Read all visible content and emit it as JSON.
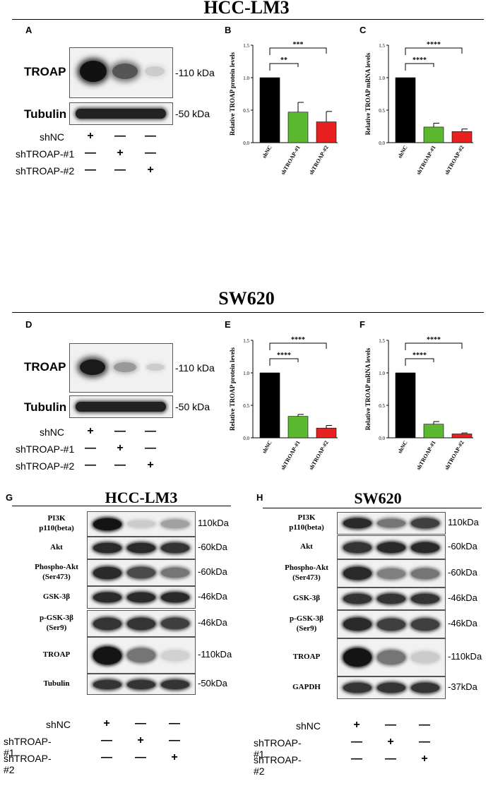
{
  "titles": {
    "top": "HCC-LM3",
    "mid": "SW620",
    "g": "HCC-LM3",
    "h": "SW620"
  },
  "panel_labels": {
    "a": "A",
    "b": "B",
    "c": "C",
    "d": "D",
    "e": "E",
    "f": "F",
    "g": "G",
    "h": "H"
  },
  "westerns_top": {
    "troap": "TROAP",
    "tubulin": "Tubulin",
    "kda_110": "-110 kDa",
    "kda_50": "-50 kDa"
  },
  "treatments": {
    "shnc": "shNC",
    "sh1": "shTROAP-#1",
    "sh2": "shTROAP-#2"
  },
  "signs": {
    "plus": "+",
    "minus": "—"
  },
  "westerns_g": {
    "rows": [
      {
        "label": "PI3K\np110(beta)",
        "kda": "110kDa"
      },
      {
        "label": "Akt",
        "kda": "-60kDa"
      },
      {
        "label": "Phospho-Akt\n(Ser473)",
        "kda": "-60kDa"
      },
      {
        "label": "GSK-3β",
        "kda": "-46kDa"
      },
      {
        "label": "p-GSK-3β\n(Ser9)",
        "kda": "-46kDa"
      },
      {
        "label": "TROAP",
        "kda": "-110kDa"
      },
      {
        "label": "Tubulin",
        "kda": "-50kDa"
      }
    ]
  },
  "westerns_h": {
    "rows": [
      {
        "label": "PI3K\np110(beta)",
        "kda": "110kDa"
      },
      {
        "label": "Akt",
        "kda": "-60kDa"
      },
      {
        "label": "Phospho-Akt\n(Ser473)",
        "kda": "-60kDa"
      },
      {
        "label": "GSK-3β",
        "kda": "-46kDa"
      },
      {
        "label": "p-GSK-3β\n(Ser9)",
        "kda": "-46kDa"
      },
      {
        "label": "TROAP",
        "kda": "-110kDa"
      },
      {
        "label": "GAPDH",
        "kda": "-37kDa"
      }
    ]
  },
  "chart_data": [
    {
      "id": "B",
      "type": "bar",
      "categories": [
        "shNC",
        "shTROAP-#1",
        "shTROAP-#2"
      ],
      "values": [
        1.0,
        0.47,
        0.32
      ],
      "errors": [
        0,
        0.15,
        0.16
      ],
      "colors": [
        "#000000",
        "#5cb82e",
        "#e8201f"
      ],
      "ylabel": "Relative TROAP protein levels",
      "ylim": [
        0,
        1.5
      ],
      "yticks": [
        "0.0",
        "0.5",
        "1.0",
        "1.5"
      ],
      "annotations": [
        "**",
        "***"
      ]
    },
    {
      "id": "C",
      "type": "bar",
      "categories": [
        "shNC",
        "shTROAP-#1",
        "shTROAP-#2"
      ],
      "values": [
        1.0,
        0.24,
        0.17
      ],
      "errors": [
        0,
        0.06,
        0.04
      ],
      "colors": [
        "#000000",
        "#5cb82e",
        "#e8201f"
      ],
      "ylabel": "Relative TROAP mRNA levels",
      "ylim": [
        0,
        1.5
      ],
      "yticks": [
        "0.0",
        "0.5",
        "1.0",
        "1.5"
      ],
      "annotations": [
        "****",
        "****"
      ]
    },
    {
      "id": "E",
      "type": "bar",
      "categories": [
        "shNC",
        "shTROAP-#1",
        "shTROAP-#2"
      ],
      "values": [
        1.0,
        0.33,
        0.15
      ],
      "errors": [
        0,
        0.03,
        0.04
      ],
      "colors": [
        "#000000",
        "#5cb82e",
        "#e8201f"
      ],
      "ylabel": "Relative TROAP protein levels",
      "ylim": [
        0,
        1.5
      ],
      "yticks": [
        "0.0",
        "0.5",
        "1.0",
        "1.5"
      ],
      "annotations": [
        "****",
        "****"
      ]
    },
    {
      "id": "F",
      "type": "bar",
      "categories": [
        "shNC",
        "shTROAP-#1",
        "shTROAP-#2"
      ],
      "values": [
        1.0,
        0.21,
        0.06
      ],
      "errors": [
        0,
        0.04,
        0.015
      ],
      "colors": [
        "#000000",
        "#5cb82e",
        "#e8201f"
      ],
      "ylabel": "Relative TROAP mRNA levels",
      "ylim": [
        0,
        1.5
      ],
      "yticks": [
        "0.0",
        "0.5",
        "1.0",
        "1.5"
      ],
      "annotations": [
        "****",
        "****"
      ]
    }
  ]
}
